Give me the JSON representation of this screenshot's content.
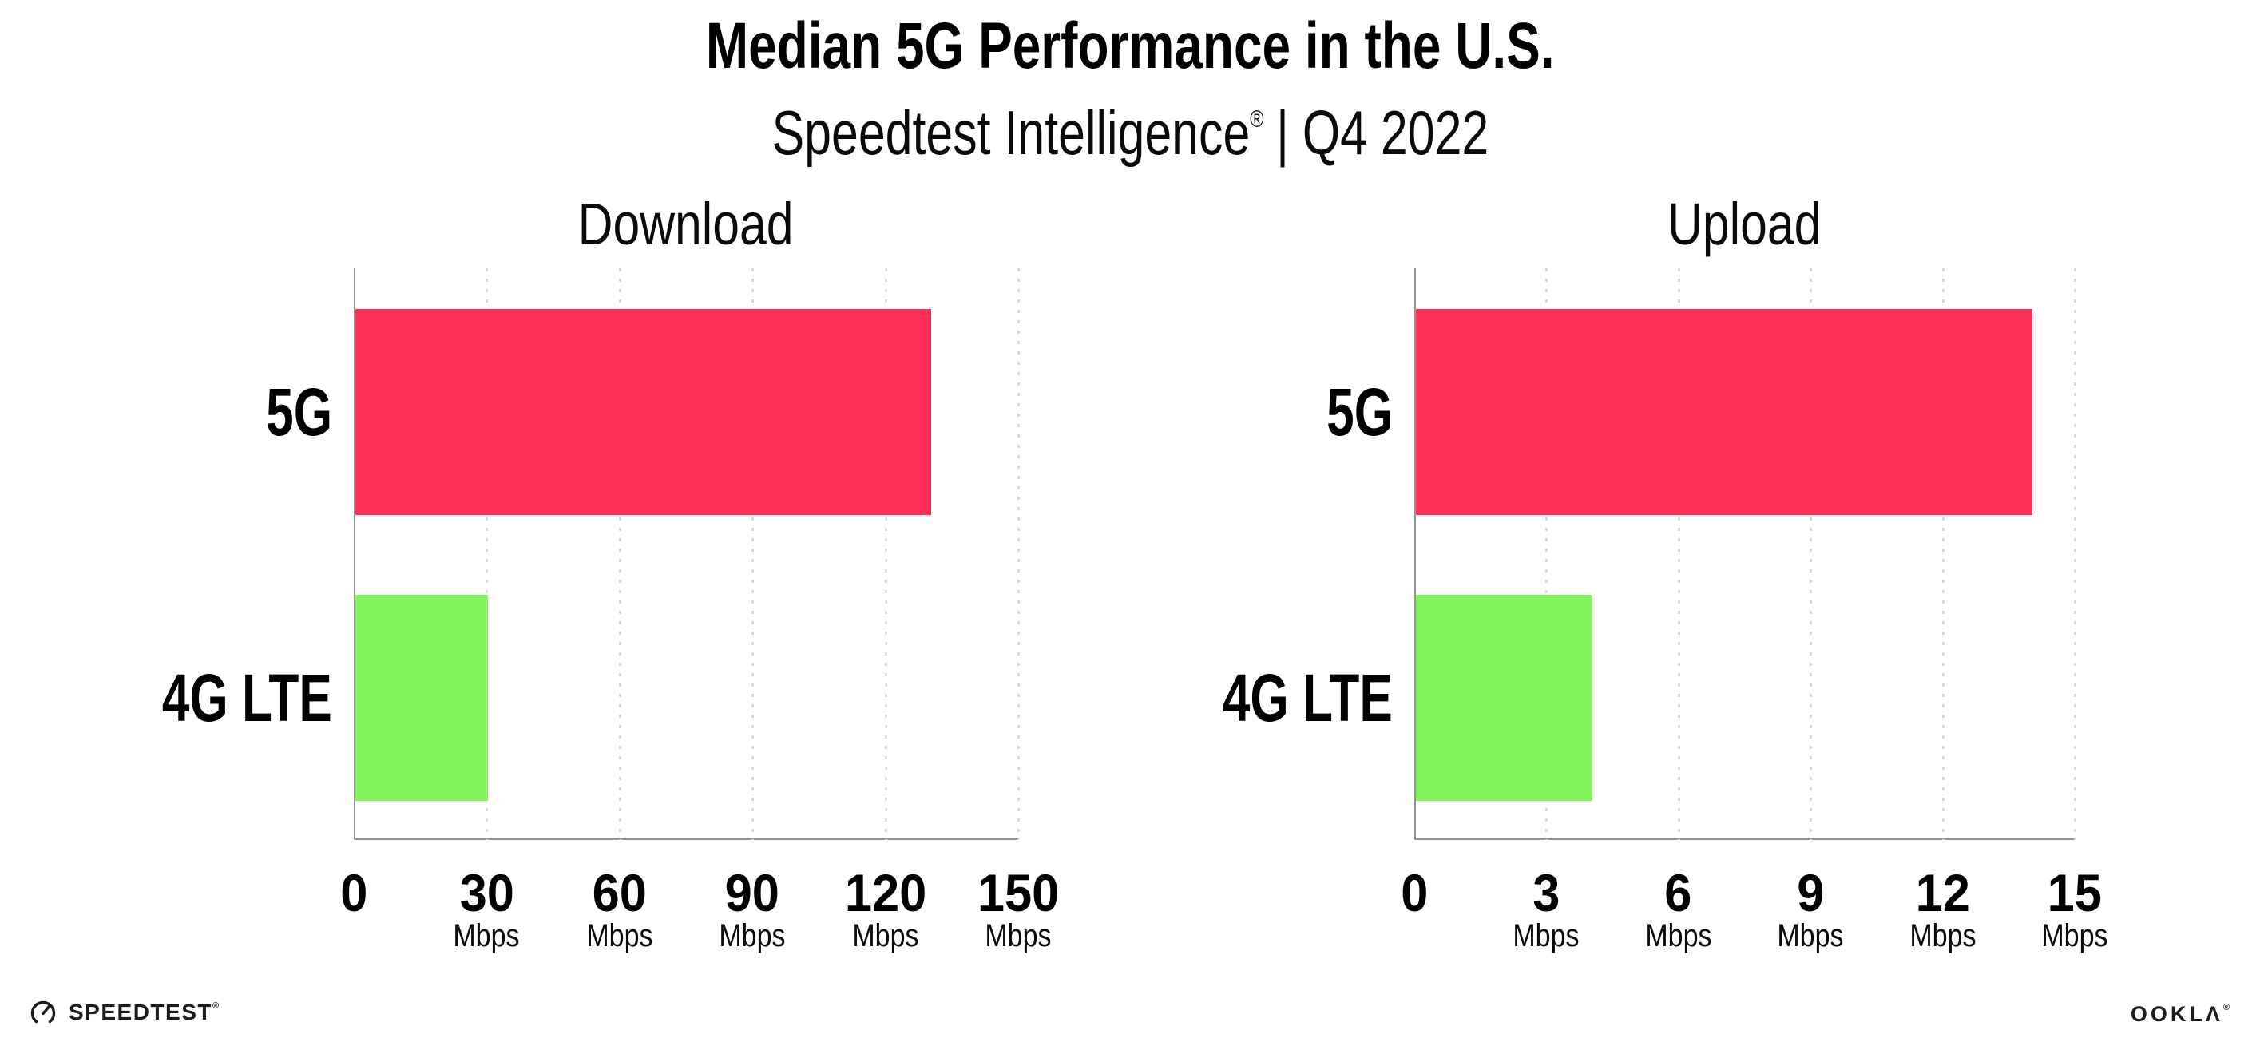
{
  "header": {
    "title": "Median 5G Performance in the U.S.",
    "subtitle_brand": "Speedtest Intelligence",
    "subtitle_trademark": "®",
    "subtitle_rest": "| Q4 2022"
  },
  "chart_data": [
    {
      "type": "bar",
      "orientation": "horizontal",
      "title": "Download",
      "categories": [
        "5G",
        "4G LTE"
      ],
      "values": [
        130,
        30
      ],
      "unit_label": "Mbps",
      "xlim": [
        0,
        150
      ],
      "xticks": [
        0,
        30,
        60,
        90,
        120,
        150
      ],
      "bar_colors": [
        "#ff3057",
        "#82f55c"
      ],
      "grid": "dotted vertical gridlines at ticks",
      "legend": "none"
    },
    {
      "type": "bar",
      "orientation": "horizontal",
      "title": "Upload",
      "categories": [
        "5G",
        "4G LTE"
      ],
      "values": [
        14,
        4
      ],
      "unit_label": "Mbps",
      "xlim": [
        0,
        15
      ],
      "xticks": [
        0,
        3,
        6,
        9,
        12,
        15
      ],
      "bar_colors": [
        "#ff3057",
        "#82f55c"
      ],
      "grid": "dotted vertical gridlines at ticks",
      "legend": "none"
    }
  ],
  "footer": {
    "speedtest_wordmark": "SPEEDTEST",
    "speedtest_trademark": "®",
    "ookla_wordmark": "OOKLΛ",
    "ookla_trademark": "®"
  },
  "colors": {
    "bar_5g": "#ff3057",
    "bar_4g_lte": "#82f55c",
    "gridline": "#d9d9e3",
    "axis": "#929297",
    "text": "#000000",
    "background": "#ffffff"
  }
}
